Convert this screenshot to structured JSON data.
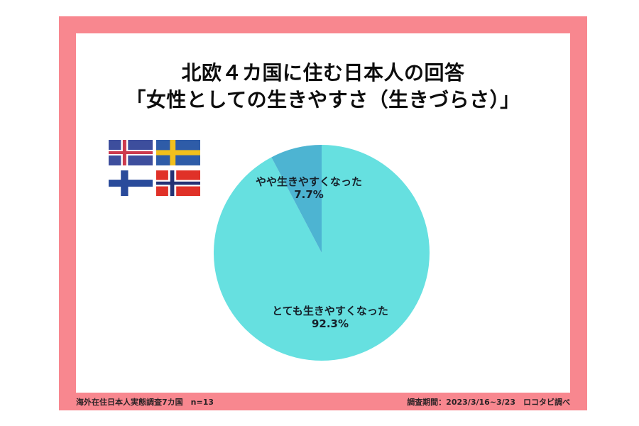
{
  "page": {
    "background": "#FFFFFF",
    "frame_color": "#F8878F",
    "inner_background": "#FFFFFF"
  },
  "title": {
    "line1": "北欧４カ国に住む日本人の回答",
    "line2": "「女性としての生きやすさ（生きづらさ）」"
  },
  "flags": {
    "items": [
      {
        "name": "iceland-flag",
        "country": "Iceland"
      },
      {
        "name": "sweden-flag",
        "country": "Sweden"
      },
      {
        "name": "finland-flag",
        "country": "Finland"
      },
      {
        "name": "norway-flag",
        "country": "Norway"
      }
    ]
  },
  "chart_data": {
    "type": "pie",
    "title": "北欧４カ国に住む日本人の回答「女性としての生きやすさ（生きづらさ）」",
    "slices": [
      {
        "label": "とても生きやすくなった",
        "value": 92.3,
        "pct_label": "92.3%",
        "color": "#66E0E0"
      },
      {
        "label": "やや生きやすくなった",
        "value": 7.7,
        "pct_label": "7.7%",
        "color": "#4DB4D2"
      }
    ],
    "start_angle_deg": 0,
    "direction": "clockwise",
    "legend": "none",
    "label_color": "#16212B"
  },
  "footer": {
    "left": "海外在住日本人実態調査7カ国　n=13",
    "right": "調査期間：2023/3/16~3/23　ロコタビ調べ"
  }
}
